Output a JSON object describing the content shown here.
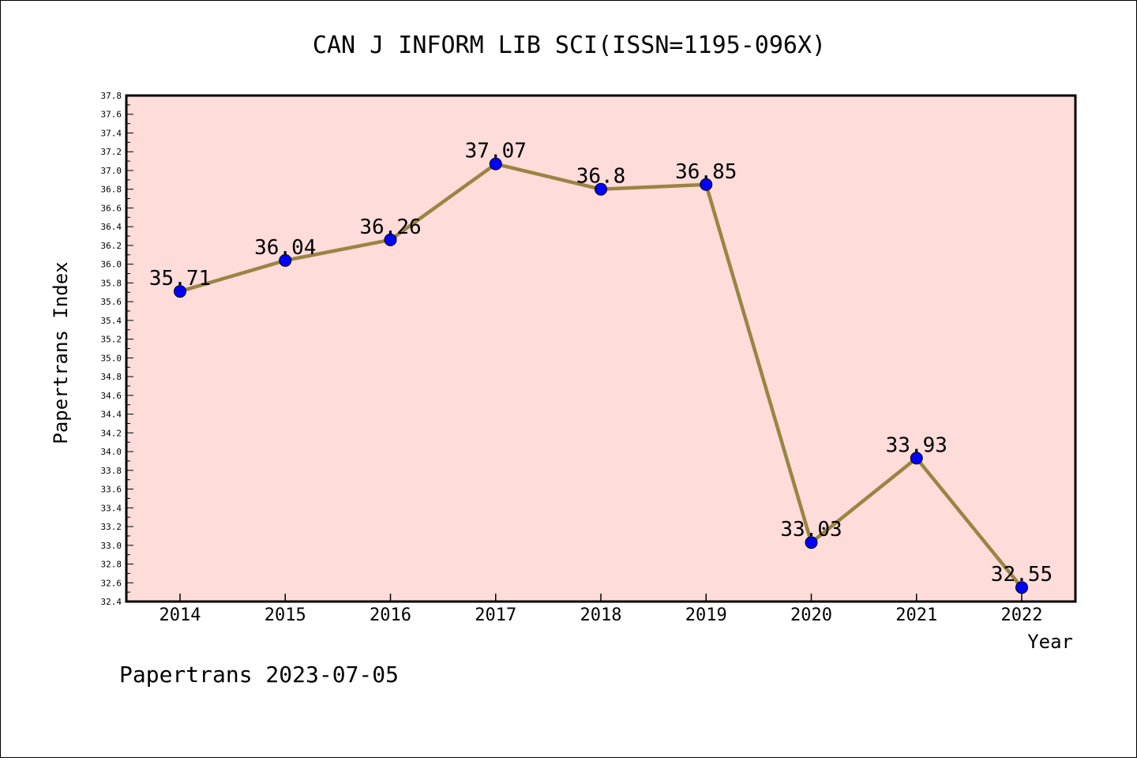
{
  "chart_data": {
    "type": "line",
    "title": "CAN J INFORM LIB SCI(ISSN=1195-096X)",
    "xlabel": "Year",
    "ylabel": "Papertrans Index",
    "categories": [
      "2014",
      "2015",
      "2016",
      "2017",
      "2018",
      "2019",
      "2020",
      "2021",
      "2022"
    ],
    "values": [
      35.71,
      36.04,
      36.26,
      37.07,
      36.8,
      36.85,
      33.03,
      33.93,
      32.55
    ],
    "data_labels": [
      "35.71",
      "36.04",
      "36.26",
      "37.07",
      "36.8",
      "36.85",
      "33.03",
      "33.93",
      "32.55"
    ],
    "ylim": [
      32.4,
      37.8
    ],
    "y_ticks": [
      "32.4",
      "32.6",
      "32.8",
      "33.0",
      "33.2",
      "33.4",
      "33.6",
      "33.8",
      "34.0",
      "34.2",
      "34.4",
      "34.6",
      "34.8",
      "35.0",
      "35.2",
      "35.4",
      "35.6",
      "35.8",
      "36.0",
      "36.2",
      "36.4",
      "36.6",
      "36.8",
      "37.0",
      "37.2",
      "37.4",
      "37.6",
      "37.8"
    ],
    "grid": false,
    "colors": {
      "plot_background": "#fddcda",
      "line": "#9a8443",
      "marker": "#0000ff"
    }
  },
  "footer": "Papertrans 2023-07-05"
}
